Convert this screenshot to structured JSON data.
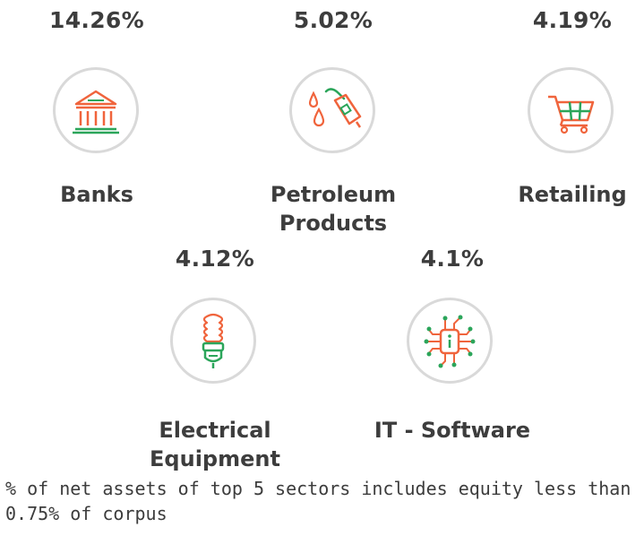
{
  "sectors": [
    {
      "name": "Banks",
      "percent": "14.26%",
      "icon": "bank-icon"
    },
    {
      "name": "Petroleum Products",
      "percent": "5.02%",
      "icon": "fuel-pump-icon"
    },
    {
      "name": "Retailing",
      "percent": "4.19%",
      "icon": "shopping-cart-icon"
    },
    {
      "name": "Electrical Equipment",
      "percent": "4.12%",
      "icon": "light-bulb-icon"
    },
    {
      "name": "IT - Software",
      "percent": "4.1%",
      "icon": "circuit-chip-icon"
    }
  ],
  "footnote": "% of net assets of top 5 sectors includes equity less than 0.75% of corpus",
  "colors": {
    "accent_orange": "#f0643c",
    "accent_green": "#2ba55a",
    "circle_border": "#d9d9d9",
    "text": "#3d3d3d"
  }
}
